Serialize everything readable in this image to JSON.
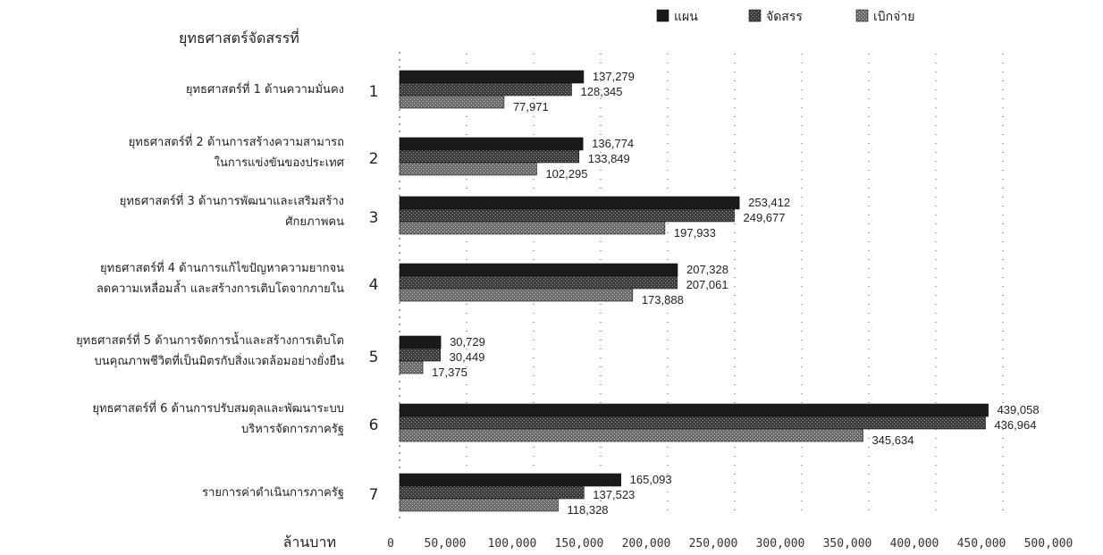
{
  "chart_data": {
    "type": "bar",
    "orientation": "horizontal",
    "title": "ยุทธศาสตร์จัดสรรที่",
    "xlabel": "ล้านบาท",
    "ylabel": "",
    "xlim": [
      0,
      500000
    ],
    "xticks": [
      "0",
      "50,000",
      "100,000",
      "150,000",
      "200,000",
      "250,000",
      "300,000",
      "350,000",
      "400,000",
      "450,000",
      "500,000"
    ],
    "grid": true,
    "legend_position": "top-right",
    "categories": [
      {
        "num": "1",
        "lines": [
          "ยุทธศาสตร์ที่ 1 ด้านความมั่นคง"
        ]
      },
      {
        "num": "2",
        "lines": [
          "ยุทธศาสตร์ที่ 2 ด้านการสร้างความสามารถ",
          "ในการแข่งขันของประเทศ"
        ]
      },
      {
        "num": "3",
        "lines": [
          "ยุทธศาสตร์ที่ 3 ด้านการพัฒนาและเสริมสร้าง",
          "ศักยภาพคน"
        ]
      },
      {
        "num": "4",
        "lines": [
          "ยุทธศาสตร์ที่ 4 ด้านการแก้ไขปัญหาความยากจน",
          "ลดความเหลื่อมล้ำ และสร้างการเติบโตจากภายใน"
        ]
      },
      {
        "num": "5",
        "lines": [
          "ยุทธศาสตร์ที่ 5 ด้านการจัดการน้ำและสร้างการเติบโต",
          "บนคุณภาพชีวิตที่เป็นมิตรกับสิ่งแวดล้อมอย่างยั่งยืน"
        ]
      },
      {
        "num": "6",
        "lines": [
          "ยุทธศาสตร์ที่ 6 ด้านการปรับสมดุลและพัฒนาระบบ",
          "บริหารจัดการภาครัฐ"
        ]
      },
      {
        "num": "7",
        "lines": [
          "รายการค่าดำเนินการภาครัฐ"
        ]
      }
    ],
    "series": [
      {
        "name": "แผน",
        "color": "#1a1a1a",
        "values": [
          137279,
          136774,
          253412,
          207328,
          30729,
          439058,
          165093
        ],
        "labels": [
          "137,279",
          "136,774",
          "253,412",
          "207,328",
          "30,729",
          "439,058",
          "165,093"
        ]
      },
      {
        "name": "จัดสรร",
        "color": "#4a4a4a",
        "values": [
          128345,
          133849,
          249677,
          207061,
          30449,
          436964,
          137523
        ],
        "labels": [
          "128,345",
          "133,849",
          "249,677",
          "207,061",
          "30,449",
          "436,964",
          "137,523"
        ]
      },
      {
        "name": "เบิกจ่าย",
        "color": "#808080",
        "values": [
          77971,
          102295,
          197933,
          173888,
          17375,
          345634,
          118328
        ],
        "labels": [
          "77,971",
          "102,295",
          "197,933",
          "173,888",
          "17,375",
          "345,634",
          "118,328"
        ]
      }
    ]
  }
}
